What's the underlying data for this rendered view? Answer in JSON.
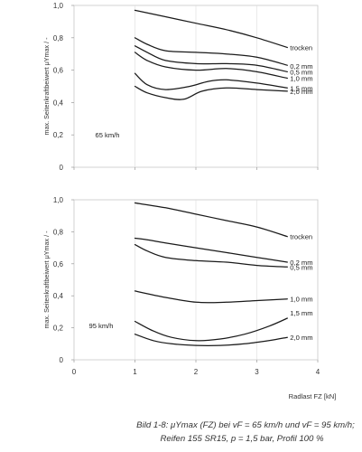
{
  "caption": {
    "line1": "Bild 1-8: μYmax (FZ) bei vF = 65 km/h und vF = 95 km/h;",
    "line2": "Reifen 155 SR15, p = 1,5 bar, Profil 100 %"
  },
  "xaxis_title": "Radlast FZ [kN]",
  "chart_data": [
    {
      "type": "line",
      "annotation": "65 km/h",
      "ylabel": "max. Seitenkraftbeiwert μYmax / -",
      "xlabel": "",
      "xlim": [
        0,
        4
      ],
      "ylim": [
        0,
        1.0
      ],
      "x_ticks": [
        "",
        "",
        "",
        "",
        ""
      ],
      "y_ticks": [
        "0",
        "0,2",
        "0,4",
        "0,6",
        "0,8",
        "1,0"
      ],
      "grid": "vertical",
      "series": [
        {
          "name": "trocken",
          "x": [
            1.0,
            1.5,
            2.0,
            2.5,
            3.0,
            3.5
          ],
          "y": [
            0.97,
            0.93,
            0.89,
            0.85,
            0.8,
            0.74
          ]
        },
        {
          "name": "0,2 mm",
          "x": [
            1.0,
            1.2,
            1.5,
            2.0,
            2.5,
            3.0,
            3.5
          ],
          "y": [
            0.8,
            0.76,
            0.72,
            0.71,
            0.7,
            0.68,
            0.63
          ]
        },
        {
          "name": "0,5 mm",
          "x": [
            1.0,
            1.2,
            1.5,
            2.0,
            2.5,
            3.0,
            3.5
          ],
          "y": [
            0.75,
            0.71,
            0.66,
            0.64,
            0.64,
            0.63,
            0.59
          ]
        },
        {
          "name": "1,0 mm",
          "x": [
            1.0,
            1.2,
            1.5,
            2.0,
            2.5,
            3.0,
            3.5
          ],
          "y": [
            0.71,
            0.66,
            0.62,
            0.6,
            0.61,
            0.59,
            0.55
          ]
        },
        {
          "name": "1,5 mm",
          "x": [
            1.0,
            1.2,
            1.5,
            1.9,
            2.2,
            2.5,
            3.0,
            3.5
          ],
          "y": [
            0.58,
            0.51,
            0.48,
            0.5,
            0.53,
            0.54,
            0.52,
            0.49
          ]
        },
        {
          "name": "2,0 mm",
          "x": [
            1.0,
            1.2,
            1.5,
            1.8,
            2.1,
            2.5,
            3.0,
            3.5
          ],
          "y": [
            0.5,
            0.46,
            0.43,
            0.42,
            0.47,
            0.49,
            0.48,
            0.47
          ]
        }
      ]
    },
    {
      "type": "line",
      "annotation": "95 km/h",
      "ylabel": "max. Seitenkraftbeiwert μYmax / -",
      "xlabel": "",
      "xlim": [
        0,
        4
      ],
      "ylim": [
        0,
        1.0
      ],
      "x_ticks": [
        "0",
        "1",
        "2",
        "3",
        "4"
      ],
      "y_ticks": [
        "0",
        "0,2",
        "0,4",
        "0,6",
        "0,8",
        "1,0"
      ],
      "grid": "vertical",
      "series": [
        {
          "name": "trocken",
          "x": [
            1.0,
            1.5,
            2.0,
            2.5,
            3.0,
            3.5
          ],
          "y": [
            0.98,
            0.95,
            0.91,
            0.87,
            0.83,
            0.77
          ]
        },
        {
          "name": "0,2 mm",
          "x": [
            1.0,
            1.2,
            1.5,
            2.0,
            2.5,
            3.0,
            3.5
          ],
          "y": [
            0.76,
            0.75,
            0.73,
            0.7,
            0.67,
            0.64,
            0.61
          ]
        },
        {
          "name": "0,5 mm",
          "x": [
            1.0,
            1.2,
            1.5,
            2.0,
            2.5,
            3.0,
            3.5
          ],
          "y": [
            0.72,
            0.68,
            0.64,
            0.62,
            0.61,
            0.59,
            0.58
          ]
        },
        {
          "name": "1,0 mm",
          "x": [
            1.0,
            1.5,
            2.0,
            2.5,
            3.0,
            3.5
          ],
          "y": [
            0.43,
            0.39,
            0.36,
            0.36,
            0.37,
            0.38
          ]
        },
        {
          "name": "1,5 mm",
          "x": [
            1.0,
            1.3,
            1.6,
            2.0,
            2.4,
            2.8,
            3.2,
            3.5
          ],
          "y": [
            0.24,
            0.18,
            0.14,
            0.12,
            0.13,
            0.16,
            0.21,
            0.26
          ]
        },
        {
          "name": "2,0 mm",
          "x": [
            1.0,
            1.3,
            1.6,
            2.0,
            2.4,
            2.8,
            3.2,
            3.5
          ],
          "y": [
            0.16,
            0.12,
            0.1,
            0.09,
            0.09,
            0.1,
            0.12,
            0.14
          ]
        }
      ]
    }
  ]
}
